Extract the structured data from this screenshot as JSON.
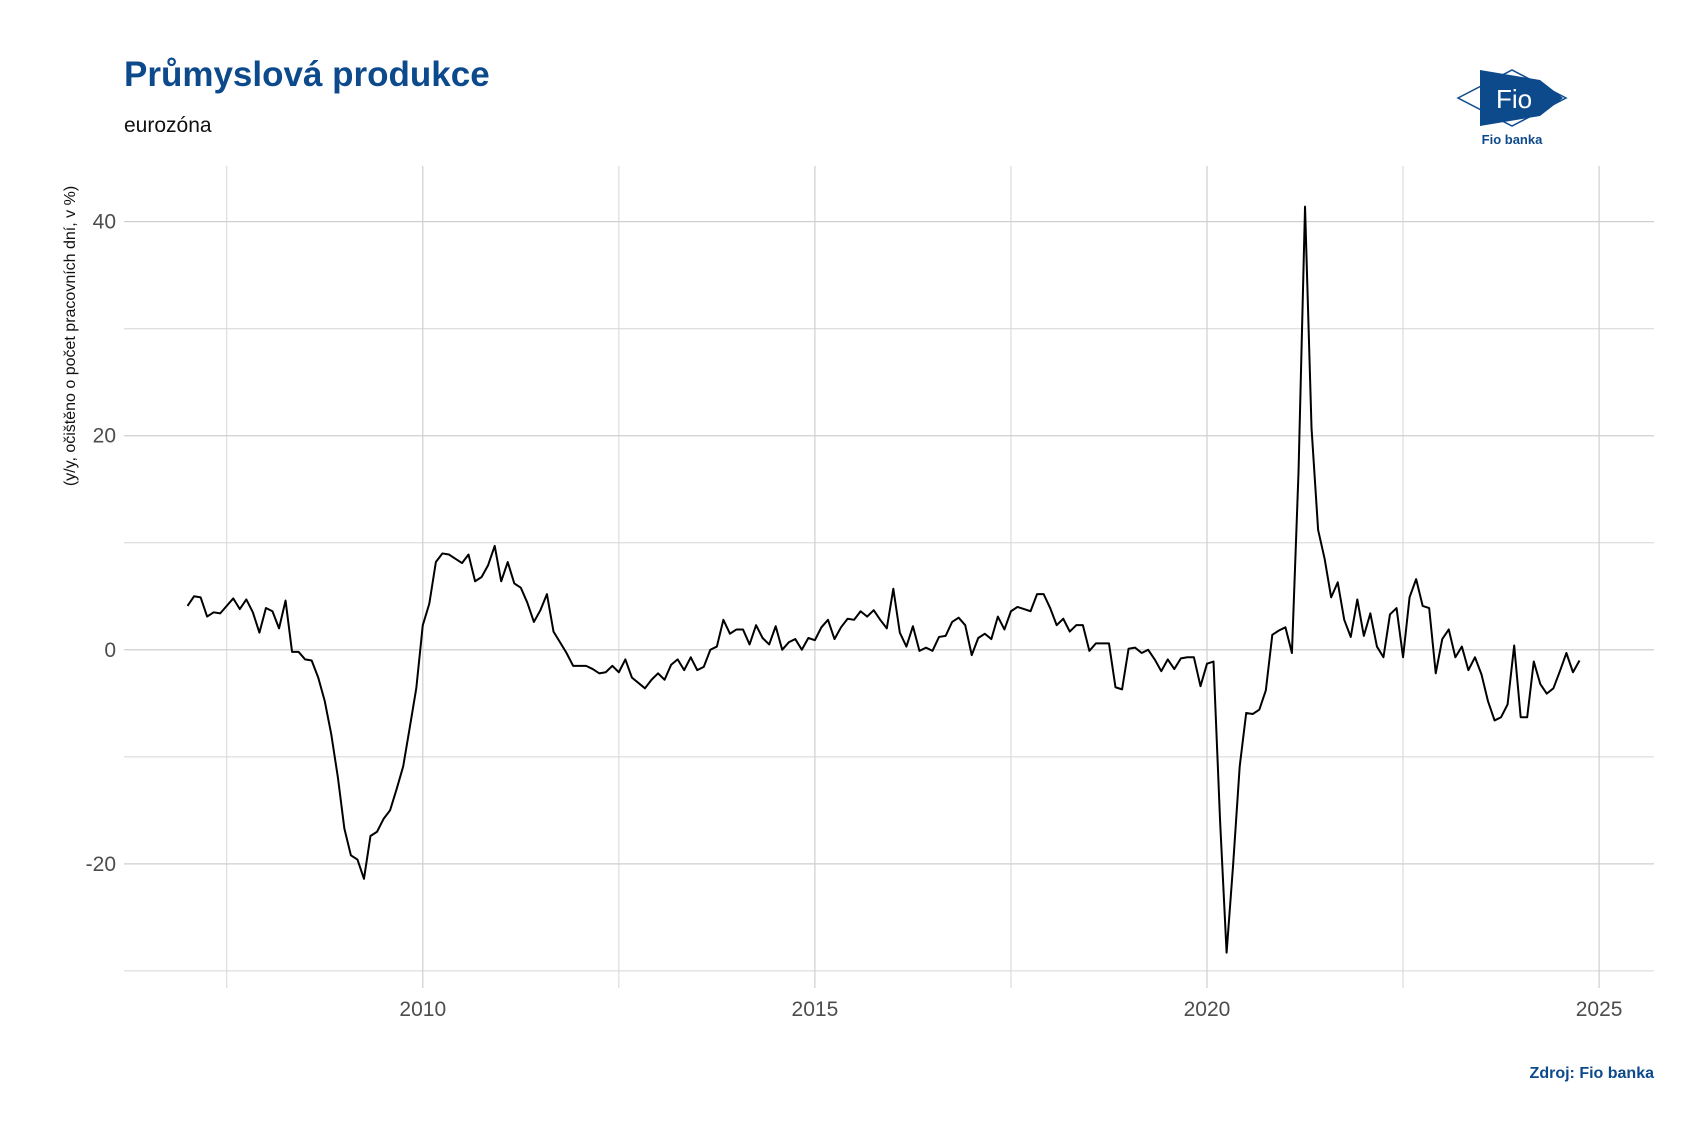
{
  "chart_data": {
    "type": "line",
    "title": "Průmyslová produkce",
    "subtitle": "eurozóna",
    "y_label": "(y/y, očištěno o počet pracovních dní, v %)",
    "source": "Zdroj: Fio banka",
    "logo": {
      "text": "Fio",
      "caption": "Fio banka"
    },
    "x": [
      2007,
      2007.083,
      2007.167,
      2007.25,
      2007.333,
      2007.417,
      2007.5,
      2007.583,
      2007.667,
      2007.75,
      2007.833,
      2007.917,
      2008,
      2008.083,
      2008.167,
      2008.25,
      2008.333,
      2008.417,
      2008.5,
      2008.583,
      2008.667,
      2008.75,
      2008.833,
      2008.917,
      2009,
      2009.083,
      2009.167,
      2009.25,
      2009.333,
      2009.417,
      2009.5,
      2009.583,
      2009.667,
      2009.75,
      2009.833,
      2009.917,
      2010,
      2010.083,
      2010.167,
      2010.25,
      2010.333,
      2010.417,
      2010.5,
      2010.583,
      2010.667,
      2010.75,
      2010.833,
      2010.917,
      2011,
      2011.083,
      2011.167,
      2011.25,
      2011.333,
      2011.417,
      2011.5,
      2011.583,
      2011.667,
      2011.75,
      2011.833,
      2011.917,
      2012,
      2012.083,
      2012.167,
      2012.25,
      2012.333,
      2012.417,
      2012.5,
      2012.583,
      2012.667,
      2012.75,
      2012.833,
      2012.917,
      2013,
      2013.083,
      2013.167,
      2013.25,
      2013.333,
      2013.417,
      2013.5,
      2013.583,
      2013.667,
      2013.75,
      2013.833,
      2013.917,
      2014,
      2014.083,
      2014.167,
      2014.25,
      2014.333,
      2014.417,
      2014.5,
      2014.583,
      2014.667,
      2014.75,
      2014.833,
      2014.917,
      2015,
      2015.083,
      2015.167,
      2015.25,
      2015.333,
      2015.417,
      2015.5,
      2015.583,
      2015.667,
      2015.75,
      2015.833,
      2015.917,
      2016,
      2016.083,
      2016.167,
      2016.25,
      2016.333,
      2016.417,
      2016.5,
      2016.583,
      2016.667,
      2016.75,
      2016.833,
      2016.917,
      2017,
      2017.083,
      2017.167,
      2017.25,
      2017.333,
      2017.417,
      2017.5,
      2017.583,
      2017.667,
      2017.75,
      2017.833,
      2017.917,
      2018,
      2018.083,
      2018.167,
      2018.25,
      2018.333,
      2018.417,
      2018.5,
      2018.583,
      2018.667,
      2018.75,
      2018.833,
      2018.917,
      2019,
      2019.083,
      2019.167,
      2019.25,
      2019.333,
      2019.417,
      2019.5,
      2019.583,
      2019.667,
      2019.75,
      2019.833,
      2019.917,
      2020,
      2020.083,
      2020.167,
      2020.25,
      2020.333,
      2020.417,
      2020.5,
      2020.583,
      2020.667,
      2020.75,
      2020.833,
      2020.917,
      2021,
      2021.083,
      2021.167,
      2021.25,
      2021.333,
      2021.417,
      2021.5,
      2021.583,
      2021.667,
      2021.75,
      2021.833,
      2021.917,
      2022,
      2022.083,
      2022.167,
      2022.25,
      2022.333,
      2022.417,
      2022.5,
      2022.583,
      2022.667,
      2022.75,
      2022.833,
      2022.917,
      2023,
      2023.083,
      2023.167,
      2023.25,
      2023.333,
      2023.417,
      2023.5,
      2023.583,
      2023.667,
      2023.75,
      2023.833,
      2023.917,
      2024,
      2024.083,
      2024.167,
      2024.25,
      2024.333,
      2024.417,
      2024.5,
      2024.583,
      2024.667,
      2024.75
    ],
    "series": [
      {
        "color": "#000000",
        "values": [
          4.1,
          5.0,
          4.9,
          3.1,
          3.5,
          3.4,
          4.1,
          4.8,
          3.8,
          4.7,
          3.5,
          1.6,
          3.9,
          3.6,
          2.0,
          4.6,
          -0.2,
          -0.2,
          -0.9,
          -1.0,
          -2.6,
          -4.8,
          -7.9,
          -11.9,
          -16.7,
          -19.2,
          -19.6,
          -21.4,
          -17.4,
          -17.0,
          -15.8,
          -15.0,
          -13.0,
          -10.9,
          -7.3,
          -3.6,
          2.3,
          4.3,
          8.2,
          9.0,
          8.9,
          8.5,
          8.1,
          8.9,
          6.4,
          6.8,
          7.9,
          9.7,
          6.4,
          8.2,
          6.2,
          5.8,
          4.4,
          2.6,
          3.7,
          5.2,
          1.7,
          0.7,
          -0.3,
          -1.5,
          -1.5,
          -1.5,
          -1.8,
          -2.2,
          -2.1,
          -1.5,
          -2.1,
          -0.9,
          -2.6,
          -3.1,
          -3.6,
          -2.8,
          -2.2,
          -2.8,
          -1.4,
          -0.9,
          -1.9,
          -0.7,
          -1.9,
          -1.6,
          0.0,
          0.3,
          2.8,
          1.5,
          1.9,
          1.9,
          0.5,
          2.3,
          1.1,
          0.5,
          2.2,
          0.0,
          0.7,
          1.0,
          0.0,
          1.1,
          0.9,
          2.1,
          2.8,
          1.0,
          2.1,
          2.9,
          2.8,
          3.6,
          3.1,
          3.7,
          2.8,
          2.0,
          5.7,
          1.6,
          0.3,
          2.2,
          -0.1,
          0.2,
          -0.1,
          1.2,
          1.3,
          2.6,
          3.0,
          2.3,
          -0.5,
          1.1,
          1.5,
          1.0,
          3.1,
          1.9,
          3.6,
          4.0,
          3.8,
          3.6,
          5.2,
          5.2,
          3.9,
          2.3,
          2.9,
          1.7,
          2.3,
          2.3,
          -0.1,
          0.6,
          0.6,
          0.6,
          -3.5,
          -3.7,
          0.1,
          0.2,
          -0.3,
          0.0,
          -0.9,
          -2.0,
          -0.9,
          -1.8,
          -0.8,
          -0.7,
          -0.7,
          -3.4,
          -1.3,
          -1.1,
          -16.0,
          -28.3,
          -20.1,
          -10.9,
          -5.9,
          -6.0,
          -5.6,
          -3.8,
          1.4,
          1.8,
          2.1,
          -0.3,
          16.6,
          41.4,
          20.7,
          11.2,
          8.5,
          4.9,
          6.3,
          2.8,
          1.2,
          4.7,
          1.3,
          3.4,
          0.3,
          -0.7,
          3.3,
          3.9,
          -0.7,
          4.9,
          6.6,
          4.1,
          3.9,
          -2.2,
          1.0,
          1.9,
          -0.7,
          0.3,
          -1.9,
          -0.7,
          -2.3,
          -4.8,
          -6.6,
          -6.3,
          -5.1,
          0.4,
          -6.3,
          -6.3,
          -1.1,
          -3.2,
          -4.1,
          -3.6,
          -2.0,
          -0.3,
          -2.1,
          -1.0
        ]
      }
    ],
    "xlim": [
      2006.19,
      2025.7
    ],
    "ylim": [
      -31.6,
      45.2
    ],
    "xticks": [
      2010,
      2015,
      2020,
      2025
    ],
    "x_minor_ticks": [
      2007.5,
      2012.5,
      2017.5,
      2022.5
    ],
    "yticks": [
      -20,
      0,
      20,
      40
    ],
    "y_minor_ticks": [
      -30,
      -10,
      10,
      30
    ],
    "grid": true
  }
}
